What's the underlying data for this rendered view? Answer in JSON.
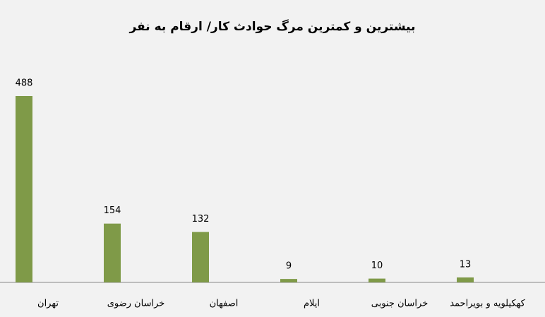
{
  "chart_data": {
    "type": "bar",
    "title": "بیشترین و کمترین مرگ حوادث کار/ ارقام به نفر",
    "categories": [
      "تهران",
      "خراسان رضوی",
      "اصفهان",
      "ایلام",
      "خراسان جنوبی",
      "کهکیلویه و بویراحمد"
    ],
    "values": [
      488,
      154,
      132,
      9,
      10,
      13
    ],
    "color": "#7f9a48",
    "ylim": [
      0,
      500
    ]
  }
}
